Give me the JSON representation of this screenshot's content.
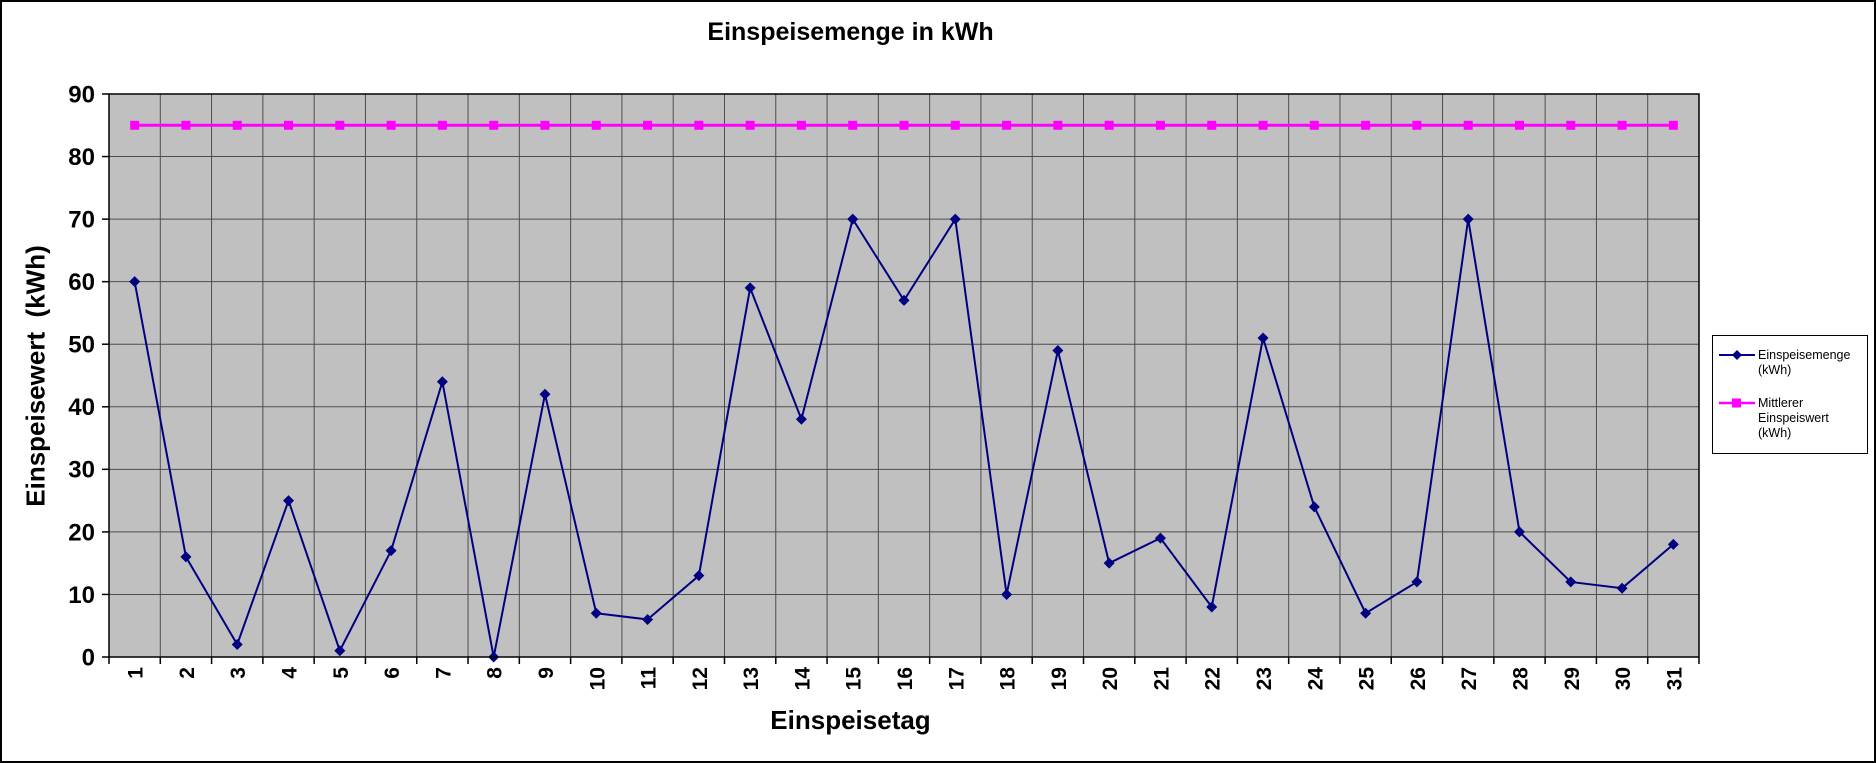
{
  "window": {
    "background": "#FFFFFF",
    "border_color": "#000000"
  },
  "chart_data": {
    "type": "line",
    "title": "Einspeisemenge in kWh",
    "xlabel": "Einspeisetag",
    "ylabel": "Einspeisewert  (kWh)",
    "categories": [
      "1",
      "2",
      "3",
      "4",
      "5",
      "6",
      "7",
      "8",
      "9",
      "10",
      "11",
      "12",
      "13",
      "14",
      "15",
      "16",
      "17",
      "18",
      "19",
      "20",
      "21",
      "22",
      "23",
      "24",
      "25",
      "26",
      "27",
      "28",
      "29",
      "30",
      "31"
    ],
    "series": [
      {
        "name": "Einspeisemenge (kWh)",
        "color": "#000080",
        "marker": "diamond",
        "line_width": 2,
        "values": [
          60,
          16,
          2,
          25,
          1,
          17,
          44,
          0,
          42,
          7,
          6,
          13,
          59,
          38,
          70,
          57,
          70,
          10,
          49,
          15,
          19,
          8,
          51,
          24,
          7,
          12,
          70,
          20,
          12,
          11,
          18
        ]
      },
      {
        "name": "Mittlerer Einspeiswert (kWh)",
        "color": "#FF00FF",
        "marker": "square",
        "line_width": 3,
        "values": [
          85,
          85,
          85,
          85,
          85,
          85,
          85,
          85,
          85,
          85,
          85,
          85,
          85,
          85,
          85,
          85,
          85,
          85,
          85,
          85,
          85,
          85,
          85,
          85,
          85,
          85,
          85,
          85,
          85,
          85,
          85
        ]
      }
    ],
    "ylim": [
      0,
      90
    ],
    "ytick_step": 10,
    "yticks": [
      "0",
      "10",
      "20",
      "30",
      "40",
      "50",
      "60",
      "70",
      "80",
      "90"
    ],
    "grid": true,
    "plot_bg": "#C0C0C0",
    "grid_color": "#4D4D4D",
    "legend_position": "right"
  },
  "legend": {
    "entries": [
      {
        "label": "Einspeisemenge (kWh)",
        "marker": "diamond",
        "color": "#000080"
      },
      {
        "label": "Mittlerer Einspeiswert (kWh)",
        "marker": "square",
        "color": "#FF00FF"
      }
    ]
  }
}
